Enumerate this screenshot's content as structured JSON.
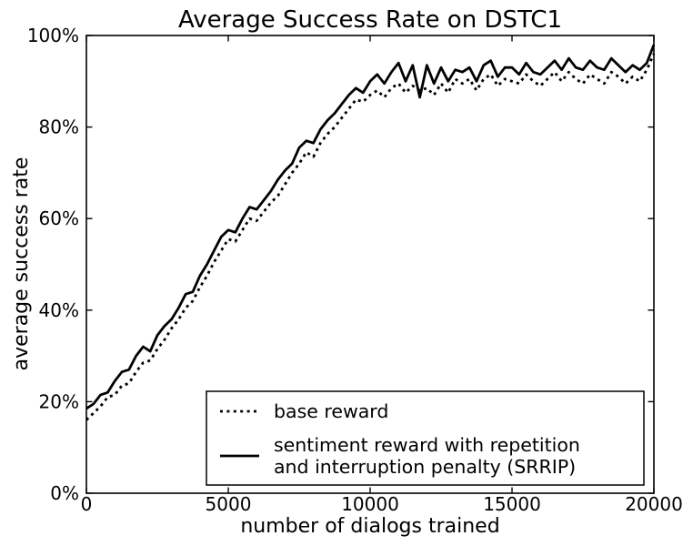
{
  "colors": {
    "background": "#ffffff",
    "foreground": "#000000"
  },
  "chart_data": {
    "type": "line",
    "title": "Average Success Rate on DSTC1",
    "xlabel": "number of dialogs trained",
    "ylabel": "average success rate",
    "xlim": [
      0,
      20000
    ],
    "ylim": [
      0,
      100
    ],
    "grid": false,
    "x_tick_values": [
      0,
      5000,
      10000,
      15000,
      20000
    ],
    "x_tick_labels": [
      "0",
      "5000",
      "10000",
      "15000",
      "20000"
    ],
    "y_tick_values": [
      0,
      20,
      40,
      60,
      80,
      100
    ],
    "y_tick_labels": [
      "0%",
      "20%",
      "40%",
      "60%",
      "80%",
      "100%"
    ],
    "legend": {
      "position": "lower right",
      "entries": [
        {
          "label": "base reward",
          "label_lines": [
            "base reward"
          ],
          "style": "dotted"
        },
        {
          "label": "sentiment reward with repetition and interruption penalty (SRRIP)",
          "label_lines": [
            "sentiment reward with repetition",
            "and interruption penalty (SRRIP)"
          ],
          "style": "solid"
        }
      ]
    },
    "x": [
      0,
      250,
      500,
      750,
      1000,
      1250,
      1500,
      1750,
      2000,
      2250,
      2500,
      2750,
      3000,
      3250,
      3500,
      3750,
      4000,
      4250,
      4500,
      4750,
      5000,
      5250,
      5500,
      5750,
      6000,
      6250,
      6500,
      6750,
      7000,
      7250,
      7500,
      7750,
      8000,
      8250,
      8500,
      8750,
      9000,
      9250,
      9500,
      9750,
      10000,
      10250,
      10500,
      10750,
      11000,
      11250,
      11500,
      11750,
      12000,
      12250,
      12500,
      12750,
      13000,
      13250,
      13500,
      13750,
      14000,
      14250,
      14500,
      14750,
      15000,
      15250,
      15500,
      15750,
      16000,
      16250,
      16500,
      16750,
      17000,
      17250,
      17500,
      17750,
      18000,
      18250,
      18500,
      18750,
      19000,
      19250,
      19500,
      19750,
      20000
    ],
    "series": [
      {
        "name": "base reward",
        "style": "dotted",
        "values": [
          16.0,
          17.5,
          19.0,
          21.0,
          21.5,
          23.5,
          24.0,
          26.5,
          28.5,
          29.0,
          31.5,
          33.5,
          36.0,
          38.0,
          40.5,
          42.0,
          45.0,
          47.5,
          50.5,
          53.0,
          55.5,
          55.0,
          57.5,
          60.0,
          59.5,
          61.5,
          63.5,
          65.0,
          67.5,
          70.0,
          72.0,
          74.5,
          73.5,
          76.5,
          78.5,
          80.0,
          82.0,
          84.0,
          86.0,
          85.5,
          87.0,
          88.0,
          86.5,
          88.5,
          89.5,
          87.5,
          89.0,
          88.0,
          88.5,
          87.0,
          89.5,
          87.5,
          90.5,
          89.5,
          90.5,
          88.0,
          90.5,
          91.5,
          89.0,
          90.5,
          90.0,
          89.5,
          91.5,
          90.0,
          89.0,
          90.5,
          92.0,
          90.0,
          92.0,
          90.5,
          89.5,
          91.5,
          90.5,
          89.5,
          92.0,
          91.0,
          89.5,
          91.0,
          90.0,
          92.5,
          96.0
        ]
      },
      {
        "name": "sentiment reward with repetition and interruption penalty (SRRIP)",
        "style": "solid",
        "values": [
          18.5,
          19.5,
          21.5,
          22.0,
          24.5,
          26.5,
          27.0,
          30.0,
          32.0,
          31.0,
          34.5,
          36.5,
          38.0,
          40.5,
          43.5,
          44.0,
          47.5,
          50.0,
          53.0,
          56.0,
          57.5,
          57.0,
          60.0,
          62.5,
          62.0,
          64.0,
          66.0,
          68.5,
          70.5,
          72.0,
          75.5,
          77.0,
          76.5,
          79.5,
          81.5,
          83.0,
          85.0,
          87.0,
          88.5,
          87.5,
          90.0,
          91.5,
          89.5,
          92.0,
          94.0,
          90.0,
          93.5,
          86.5,
          93.5,
          89.5,
          93.0,
          90.0,
          92.5,
          92.0,
          93.0,
          90.0,
          93.5,
          94.5,
          91.0,
          93.0,
          93.0,
          91.5,
          94.0,
          92.0,
          91.5,
          93.0,
          94.5,
          92.5,
          95.0,
          93.0,
          92.5,
          94.5,
          93.0,
          92.5,
          95.0,
          93.5,
          92.0,
          93.5,
          92.5,
          94.0,
          98.0
        ]
      }
    ]
  }
}
